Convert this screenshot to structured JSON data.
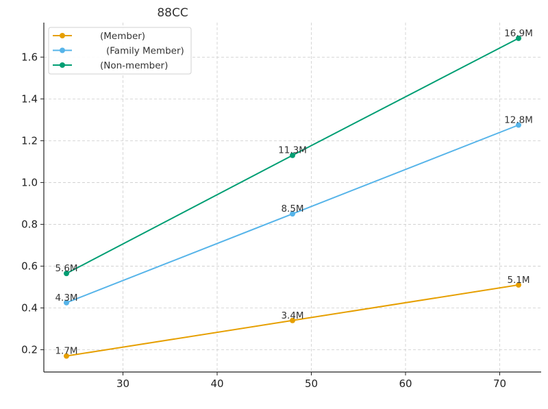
{
  "chart_data": {
    "type": "line",
    "title": "88CC",
    "xlabel": "",
    "ylabel": "",
    "x": [
      24,
      48,
      72
    ],
    "xlim": [
      21.6,
      74.4
    ],
    "ylim": [
      0.0935,
      1.765
    ],
    "xticks": [
      30,
      40,
      50,
      60,
      70
    ],
    "yticks": [
      0.2,
      0.4,
      0.6,
      0.8,
      1.0,
      1.2,
      1.4,
      1.6
    ],
    "grid": true,
    "legend_position": "top-left",
    "series": [
      {
        "name": "(Member)",
        "color": "#E69F00",
        "values": [
          0.17,
          0.34,
          0.51
        ],
        "labels": [
          "1.7M",
          "3.4M",
          "5.1M"
        ]
      },
      {
        "name": "(Family Member)",
        "color": "#56B4E9",
        "values": [
          0.425,
          0.85,
          1.275
        ],
        "labels": [
          "4.3M",
          "8.5M",
          "12.8M"
        ]
      },
      {
        "name": "(Non-member)",
        "color": "#009E73",
        "values": [
          0.565,
          1.13,
          1.69
        ],
        "labels": [
          "5.6M",
          "11.3M",
          "16.9M"
        ]
      }
    ]
  }
}
